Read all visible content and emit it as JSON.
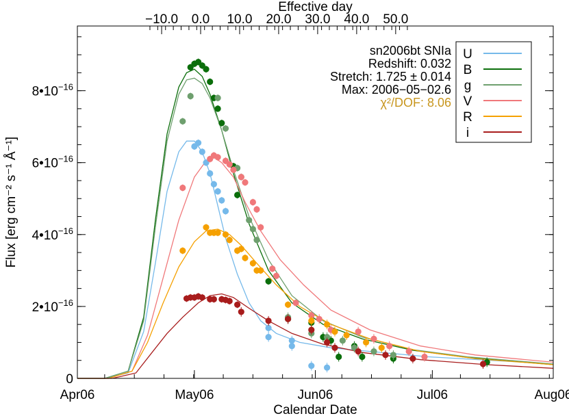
{
  "chart_data": {
    "type": "scatter",
    "xlabel": "Calendar Date",
    "x2label": "Effective day",
    "ylabel": "Flux [erg cm⁻² s⁻¹ Å⁻¹]",
    "xlim": [
      "2006-04-01",
      "2006-08-01"
    ],
    "ylim": [
      0,
      9.8e-16
    ],
    "x_ticks": [
      {
        "label": "Apr06",
        "date": "2006-04-01"
      },
      {
        "label": "May06",
        "date": "2006-05-01"
      },
      {
        "label": "Jun06",
        "date": "2006-06-01"
      },
      {
        "label": "Jul06",
        "date": "2006-07-01"
      },
      {
        "label": "Aug06",
        "date": "2006-08-01"
      }
    ],
    "x2_ticks": [
      {
        "label": "−10.0",
        "value": -10
      },
      {
        "label": "0.0",
        "value": 0
      },
      {
        "label": "10.0",
        "value": 10
      },
      {
        "label": "20.0",
        "value": 20
      },
      {
        "label": "30.0",
        "value": 30
      },
      {
        "label": "40.0",
        "value": 40
      },
      {
        "label": "50.0",
        "value": 50
      }
    ],
    "y_ticks": [
      {
        "label": "0",
        "value": 0
      },
      {
        "label": "2•10",
        "exp": "−16",
        "value": 2e-16
      },
      {
        "label": "4•10",
        "exp": "−16",
        "value": 4e-16
      },
      {
        "label": "6•10",
        "exp": "−16",
        "value": 6e-16
      },
      {
        "label": "8•10",
        "exp": "−16",
        "value": 8e-16
      }
    ],
    "info": {
      "line1": "sn2006bt  SNIa",
      "line2": "Redshift: 0.032",
      "line3": "Stretch: 1.725 ± 0.014",
      "line4": "Max: 2006−05−02.6",
      "chi": "χ²/DOF: 8.06",
      "chi_color": "#c8961e"
    },
    "legend_position": "top-right",
    "series": [
      {
        "name": "U",
        "color": "#75b9ea",
        "model": [
          [
            "2006-04-08",
            0
          ],
          [
            "2006-04-14",
            1.5e-17
          ],
          [
            "2006-04-18",
            1.3e-16
          ],
          [
            "2006-04-21",
            3.2e-16
          ],
          [
            "2006-04-24",
            5.2e-16
          ],
          [
            "2006-04-27",
            6.3e-16
          ],
          [
            "2006-04-29",
            6.6e-16
          ],
          [
            "2006-05-01",
            6.6e-16
          ],
          [
            "2006-05-03",
            6.3e-16
          ],
          [
            "2006-05-05",
            5.7e-16
          ],
          [
            "2006-05-07",
            4.8e-16
          ],
          [
            "2006-05-09",
            3.9e-16
          ],
          [
            "2006-05-12",
            2.9e-16
          ],
          [
            "2006-05-15",
            2.1e-16
          ],
          [
            "2006-05-18",
            1.6e-16
          ],
          [
            "2006-05-22",
            1.25e-16
          ],
          [
            "2006-05-28",
            1e-16
          ],
          [
            "2006-06-05",
            8.5e-17
          ],
          [
            "2006-06-15",
            7.5e-17
          ],
          [
            "2006-06-30",
            6e-17
          ],
          [
            "2006-08-01",
            4e-17
          ]
        ],
        "points": [
          [
            "2006-05-01",
            6.45e-16
          ],
          [
            "2006-05-02",
            6.55e-16
          ],
          [
            "2006-05-03",
            6.3e-16
          ],
          [
            "2006-05-04",
            6e-16
          ],
          [
            "2006-05-05",
            5.7e-16
          ],
          [
            "2006-05-06",
            5.4e-16
          ],
          [
            "2006-05-07",
            5.2e-16
          ],
          [
            "2006-05-08",
            4.95e-16
          ],
          [
            "2006-05-09",
            4.65e-16
          ],
          [
            "2006-05-20",
            1.4e-16
          ],
          [
            "2006-05-20",
            1.15e-16
          ],
          [
            "2006-05-26",
            1.05e-16
          ],
          [
            "2006-05-26",
            9e-17
          ],
          [
            "2006-05-31",
            3.5e-17
          ],
          [
            "2006-06-04",
            3e-17
          ]
        ]
      },
      {
        "name": "B",
        "color": "#0b6e0b",
        "model": [
          [
            "2006-04-08",
            0
          ],
          [
            "2006-04-14",
            2e-17
          ],
          [
            "2006-04-18",
            1.7e-16
          ],
          [
            "2006-04-21",
            4.4e-16
          ],
          [
            "2006-04-24",
            6.8e-16
          ],
          [
            "2006-04-27",
            8.1e-16
          ],
          [
            "2006-04-29",
            8.5e-16
          ],
          [
            "2006-05-01",
            8.6e-16
          ],
          [
            "2006-05-03",
            8.4e-16
          ],
          [
            "2006-05-05",
            7.9e-16
          ],
          [
            "2006-05-08",
            6.9e-16
          ],
          [
            "2006-05-11",
            5.7e-16
          ],
          [
            "2006-05-15",
            4.3e-16
          ],
          [
            "2006-05-20",
            3e-16
          ],
          [
            "2006-05-26",
            2.1e-16
          ],
          [
            "2006-06-03",
            1.5e-16
          ],
          [
            "2006-06-13",
            1.1e-16
          ],
          [
            "2006-06-26",
            7.8e-17
          ],
          [
            "2006-07-10",
            5.8e-17
          ],
          [
            "2006-08-01",
            3.8e-17
          ]
        ],
        "points": [
          [
            "2006-04-30",
            8.65e-16
          ],
          [
            "2006-05-01",
            8.75e-16
          ],
          [
            "2006-05-02",
            8.8e-16
          ],
          [
            "2006-05-03",
            8.7e-16
          ],
          [
            "2006-05-04",
            8.6e-16
          ],
          [
            "2006-05-05",
            8.25e-16
          ],
          [
            "2006-05-06",
            7.8e-16
          ],
          [
            "2006-05-07",
            7.5e-16
          ],
          [
            "2006-05-08",
            7.1e-16
          ],
          [
            "2006-05-11",
            5.9e-16
          ],
          [
            "2006-05-12",
            5.1e-16
          ],
          [
            "2006-05-20",
            2.7e-16
          ],
          [
            "2006-05-25",
            1.65e-16
          ],
          [
            "2006-05-31",
            1.55e-16
          ],
          [
            "2006-06-03",
            1.15e-16
          ],
          [
            "2006-06-05",
            1.05e-16
          ],
          [
            "2006-06-07",
            6e-17
          ],
          [
            "2006-06-11",
            9e-17
          ],
          [
            "2006-06-13",
            6e-17
          ],
          [
            "2006-06-21",
            5.5e-17
          ],
          [
            "2006-07-15",
            4.5e-17
          ]
        ]
      },
      {
        "name": "g",
        "color": "#6e9f6e",
        "model": [
          [
            "2006-04-08",
            0
          ],
          [
            "2006-04-14",
            2e-17
          ],
          [
            "2006-04-18",
            1.6e-16
          ],
          [
            "2006-04-21",
            4.2e-16
          ],
          [
            "2006-04-24",
            6.6e-16
          ],
          [
            "2006-04-27",
            7.9e-16
          ],
          [
            "2006-04-29",
            8.3e-16
          ],
          [
            "2006-05-01",
            8.35e-16
          ],
          [
            "2006-05-03",
            8.2e-16
          ],
          [
            "2006-05-05",
            7.8e-16
          ],
          [
            "2006-05-08",
            6.9e-16
          ],
          [
            "2006-05-11",
            5.8e-16
          ],
          [
            "2006-05-15",
            4.5e-16
          ],
          [
            "2006-05-20",
            3.3e-16
          ],
          [
            "2006-05-26",
            2.3e-16
          ],
          [
            "2006-06-03",
            1.6e-16
          ],
          [
            "2006-06-13",
            1.15e-16
          ],
          [
            "2006-06-26",
            8e-17
          ],
          [
            "2006-07-10",
            6e-17
          ],
          [
            "2006-08-01",
            4e-17
          ]
        ],
        "points": [
          [
            "2006-04-28",
            7.15e-16
          ],
          [
            "2006-04-30",
            7.85e-16
          ],
          [
            "2006-05-07",
            7.8e-16
          ],
          [
            "2006-05-09",
            6.95e-16
          ],
          [
            "2006-05-12",
            5.85e-16
          ],
          [
            "2006-05-13",
            5.6e-16
          ],
          [
            "2006-05-15",
            4.4e-16
          ],
          [
            "2006-05-16",
            4.15e-16
          ],
          [
            "2006-05-17",
            3.85e-16
          ],
          [
            "2006-05-25",
            1.7e-16
          ],
          [
            "2006-05-31",
            1.25e-16
          ],
          [
            "2006-06-04",
            1.15e-16
          ],
          [
            "2006-06-08",
            1.05e-16
          ],
          [
            "2006-06-11",
            8.5e-17
          ],
          [
            "2006-06-16",
            7.5e-17
          ],
          [
            "2006-06-21",
            6.5e-17
          ]
        ]
      },
      {
        "name": "V",
        "color": "#f0787a",
        "model": [
          [
            "2006-04-09",
            0
          ],
          [
            "2006-04-15",
            2e-17
          ],
          [
            "2006-04-19",
            1.2e-16
          ],
          [
            "2006-04-23",
            2.8e-16
          ],
          [
            "2006-04-27",
            4.4e-16
          ],
          [
            "2006-05-01",
            5.6e-16
          ],
          [
            "2006-05-04",
            6.05e-16
          ],
          [
            "2006-05-06",
            6.15e-16
          ],
          [
            "2006-05-08",
            6e-16
          ],
          [
            "2006-05-11",
            5.6e-16
          ],
          [
            "2006-05-14",
            4.9e-16
          ],
          [
            "2006-05-18",
            4.1e-16
          ],
          [
            "2006-05-23",
            3.3e-16
          ],
          [
            "2006-05-29",
            2.6e-16
          ],
          [
            "2006-06-05",
            1.9e-16
          ],
          [
            "2006-06-15",
            1.35e-16
          ],
          [
            "2006-06-28",
            9e-17
          ],
          [
            "2006-07-12",
            6.5e-17
          ],
          [
            "2006-08-01",
            4.5e-17
          ]
        ],
        "points": [
          [
            "2006-04-28",
            5.3e-16
          ],
          [
            "2006-05-05",
            6.1e-16
          ],
          [
            "2006-05-06",
            6.2e-16
          ],
          [
            "2006-05-07",
            6.15e-16
          ],
          [
            "2006-05-09",
            6.05e-16
          ],
          [
            "2006-05-10",
            5.95e-16
          ],
          [
            "2006-05-11",
            5.8e-16
          ],
          [
            "2006-05-13",
            5.6e-16
          ],
          [
            "2006-05-14",
            5.45e-16
          ],
          [
            "2006-05-16",
            4.9e-16
          ],
          [
            "2006-05-17",
            4.7e-16
          ],
          [
            "2006-05-18",
            4.2e-16
          ],
          [
            "2006-05-21",
            3.05e-16
          ],
          [
            "2006-05-22",
            2.85e-16
          ],
          [
            "2006-05-27",
            2.1e-16
          ],
          [
            "2006-05-31",
            1.75e-16
          ],
          [
            "2006-06-02",
            1.65e-16
          ],
          [
            "2006-06-05",
            1.35e-16
          ],
          [
            "2006-06-12",
            1.3e-16
          ],
          [
            "2006-06-16",
            1.1e-16
          ],
          [
            "2006-06-20",
            9e-17
          ],
          [
            "2006-06-25",
            7.5e-17
          ],
          [
            "2006-06-29",
            6e-17
          ]
        ]
      },
      {
        "name": "R",
        "color": "#f5a000",
        "model": [
          [
            "2006-04-09",
            0
          ],
          [
            "2006-04-15",
            2e-17
          ],
          [
            "2006-04-19",
            1e-16
          ],
          [
            "2006-04-23",
            2.1e-16
          ],
          [
            "2006-04-27",
            3.1e-16
          ],
          [
            "2006-05-01",
            3.8e-16
          ],
          [
            "2006-05-04",
            4.1e-16
          ],
          [
            "2006-05-07",
            4.15e-16
          ],
          [
            "2006-05-10",
            4e-16
          ],
          [
            "2006-05-13",
            3.7e-16
          ],
          [
            "2006-05-17",
            3.2e-16
          ],
          [
            "2006-05-22",
            2.6e-16
          ],
          [
            "2006-05-28",
            2e-16
          ],
          [
            "2006-06-05",
            1.5e-16
          ],
          [
            "2006-06-15",
            1.1e-16
          ],
          [
            "2006-06-28",
            7.5e-17
          ],
          [
            "2006-07-12",
            5.5e-17
          ],
          [
            "2006-08-01",
            3.8e-17
          ]
        ],
        "points": [
          [
            "2006-04-28",
            3.55e-16
          ],
          [
            "2006-05-04",
            4.2e-16
          ],
          [
            "2006-05-05",
            4.05e-16
          ],
          [
            "2006-05-06",
            4.05e-16
          ],
          [
            "2006-05-07",
            4.05e-16
          ],
          [
            "2006-05-09",
            4e-16
          ],
          [
            "2006-05-10",
            3.85e-16
          ],
          [
            "2006-05-12",
            3.55e-16
          ],
          [
            "2006-05-13",
            3.6e-16
          ],
          [
            "2006-05-14",
            3.35e-16
          ],
          [
            "2006-05-16",
            3.2e-16
          ],
          [
            "2006-05-17",
            3e-16
          ],
          [
            "2006-05-18",
            3e-16
          ],
          [
            "2006-05-25",
            2.05e-16
          ],
          [
            "2006-05-31",
            1.6e-16
          ],
          [
            "2006-06-04",
            1.5e-16
          ],
          [
            "2006-06-06",
            1.3e-16
          ],
          [
            "2006-06-09",
            1.2e-16
          ],
          [
            "2006-06-14",
            1e-16
          ],
          [
            "2006-06-18",
            8.5e-17
          ]
        ]
      },
      {
        "name": "i",
        "color": "#a81c1c",
        "model": [
          [
            "2006-04-10",
            0
          ],
          [
            "2006-04-16",
            1.5e-17
          ],
          [
            "2006-04-20",
            7e-17
          ],
          [
            "2006-04-24",
            1.25e-16
          ],
          [
            "2006-04-28",
            1.7e-16
          ],
          [
            "2006-05-02",
            2.1e-16
          ],
          [
            "2006-05-05",
            2.3e-16
          ],
          [
            "2006-05-08",
            2.35e-16
          ],
          [
            "2006-05-11",
            2.25e-16
          ],
          [
            "2006-05-15",
            1.95e-16
          ],
          [
            "2006-05-20",
            1.6e-16
          ],
          [
            "2006-05-26",
            1.25e-16
          ],
          [
            "2006-06-03",
            9.5e-17
          ],
          [
            "2006-06-13",
            7.2e-17
          ],
          [
            "2006-06-28",
            5.2e-17
          ],
          [
            "2006-07-15",
            3.8e-17
          ],
          [
            "2006-08-01",
            2.8e-17
          ]
        ],
        "points": [
          [
            "2006-04-29",
            2.22e-16
          ],
          [
            "2006-04-30",
            2.25e-16
          ],
          [
            "2006-05-01",
            2.25e-16
          ],
          [
            "2006-05-02",
            2.28e-16
          ],
          [
            "2006-05-03",
            2.25e-16
          ],
          [
            "2006-05-05",
            2.2e-16
          ],
          [
            "2006-05-06",
            2.2e-16
          ],
          [
            "2006-05-08",
            2.2e-16
          ],
          [
            "2006-05-09",
            2.18e-16
          ],
          [
            "2006-05-10",
            2.15e-16
          ],
          [
            "2006-05-12",
            2.05e-16
          ],
          [
            "2006-05-13",
            1.85e-16
          ],
          [
            "2006-05-20",
            1.6e-16
          ],
          [
            "2006-05-25",
            1.65e-16
          ],
          [
            "2006-05-31",
            1.35e-16
          ],
          [
            "2006-06-04",
            1e-16
          ],
          [
            "2006-06-06",
            8.5e-17
          ],
          [
            "2006-06-12",
            7.5e-17
          ],
          [
            "2006-06-19",
            6.5e-17
          ],
          [
            "2006-06-26",
            5.5e-17
          ],
          [
            "2006-07-14",
            4e-17
          ]
        ]
      }
    ]
  }
}
